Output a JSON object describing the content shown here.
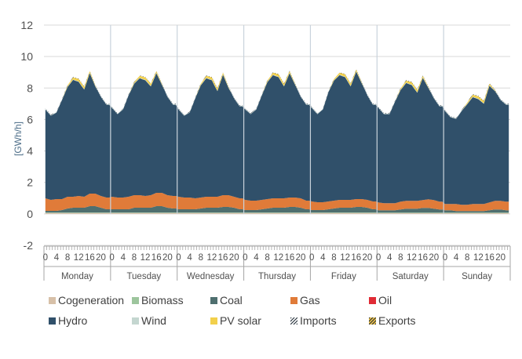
{
  "chart_data": {
    "type": "area",
    "stacked": true,
    "ylabel": "[GWh/h]",
    "ylim": [
      -2,
      12
    ],
    "yticks": [
      -2,
      0,
      2,
      4,
      6,
      8,
      10,
      12
    ],
    "grid": "horizontal",
    "days": [
      "Monday",
      "Tuesday",
      "Wednesday",
      "Thursday",
      "Friday",
      "Saturday",
      "Sunday"
    ],
    "hour_ticks": [
      "0",
      "4",
      "8",
      "12",
      "16",
      "20"
    ],
    "hourly_sample_hours": [
      0,
      2,
      4,
      6,
      8,
      10,
      12,
      14,
      16,
      18,
      20,
      22
    ],
    "total_load": [
      [
        6.7,
        6.3,
        6.5,
        7.3,
        8.2,
        8.7,
        8.6,
        8.1,
        9.1,
        8.2,
        7.5,
        7.0
      ],
      [
        6.8,
        6.4,
        6.7,
        7.6,
        8.4,
        8.8,
        8.7,
        8.3,
        9.1,
        8.3,
        7.5,
        7.0
      ],
      [
        6.7,
        6.3,
        6.5,
        7.4,
        8.3,
        8.8,
        8.7,
        8.0,
        9.0,
        8.1,
        7.4,
        6.9
      ],
      [
        6.7,
        6.4,
        6.7,
        7.6,
        8.5,
        9.0,
        8.9,
        8.3,
        9.1,
        8.3,
        7.5,
        7.0
      ],
      [
        6.8,
        6.4,
        6.7,
        7.8,
        8.6,
        9.0,
        8.9,
        8.3,
        9.2,
        8.4,
        7.6,
        7.0
      ],
      [
        6.8,
        6.4,
        6.4,
        7.2,
        8.0,
        8.5,
        8.4,
        7.9,
        8.8,
        8.1,
        7.4,
        6.9
      ],
      [
        6.6,
        6.2,
        6.1,
        6.6,
        7.1,
        7.6,
        7.5,
        7.2,
        8.3,
        7.9,
        7.3,
        7.0
      ]
    ],
    "series": [
      {
        "name": "Cogeneration",
        "color": "#d7c0a8",
        "pattern": "solid",
        "values_by_day": [
          0.06,
          0.06,
          0.06,
          0.06,
          0.06,
          0.05,
          0.05
        ]
      },
      {
        "name": "Biomass",
        "color": "#9dc59d",
        "pattern": "solid",
        "values_by_day": [
          0.03,
          0.03,
          0.03,
          0.03,
          0.03,
          0.03,
          0.03
        ]
      },
      {
        "name": "Coal",
        "color": "#4f6f6f",
        "pattern": "solid",
        "values": [
          [
            0.1,
            0.1,
            0.1,
            0.15,
            0.25,
            0.3,
            0.3,
            0.3,
            0.4,
            0.4,
            0.3,
            0.2
          ],
          [
            0.2,
            0.2,
            0.2,
            0.2,
            0.3,
            0.3,
            0.3,
            0.3,
            0.4,
            0.4,
            0.3,
            0.25
          ],
          [
            0.2,
            0.2,
            0.2,
            0.2,
            0.25,
            0.3,
            0.3,
            0.3,
            0.35,
            0.35,
            0.3,
            0.2
          ],
          [
            0.15,
            0.15,
            0.15,
            0.2,
            0.25,
            0.3,
            0.3,
            0.3,
            0.35,
            0.35,
            0.3,
            0.2
          ],
          [
            0.15,
            0.15,
            0.15,
            0.2,
            0.25,
            0.3,
            0.3,
            0.3,
            0.35,
            0.35,
            0.3,
            0.2
          ],
          [
            0.15,
            0.15,
            0.15,
            0.15,
            0.2,
            0.25,
            0.25,
            0.25,
            0.3,
            0.3,
            0.25,
            0.2
          ],
          [
            0.15,
            0.15,
            0.1,
            0.1,
            0.1,
            0.1,
            0.1,
            0.1,
            0.15,
            0.2,
            0.2,
            0.15
          ]
        ]
      },
      {
        "name": "Gas",
        "color": "#e07b39",
        "pattern": "solid",
        "values": [
          [
            0.8,
            0.7,
            0.75,
            0.7,
            0.75,
            0.7,
            0.75,
            0.7,
            0.8,
            0.8,
            0.75,
            0.75
          ],
          [
            0.8,
            0.75,
            0.75,
            0.8,
            0.8,
            0.8,
            0.75,
            0.8,
            0.85,
            0.85,
            0.8,
            0.8
          ],
          [
            0.8,
            0.75,
            0.75,
            0.7,
            0.7,
            0.7,
            0.7,
            0.7,
            0.75,
            0.75,
            0.7,
            0.7
          ],
          [
            0.65,
            0.6,
            0.6,
            0.6,
            0.6,
            0.6,
            0.6,
            0.6,
            0.6,
            0.6,
            0.6,
            0.55
          ],
          [
            0.55,
            0.5,
            0.5,
            0.5,
            0.5,
            0.5,
            0.5,
            0.5,
            0.5,
            0.5,
            0.5,
            0.5
          ],
          [
            0.5,
            0.45,
            0.45,
            0.45,
            0.5,
            0.5,
            0.5,
            0.5,
            0.5,
            0.55,
            0.55,
            0.5
          ],
          [
            0.4,
            0.4,
            0.45,
            0.4,
            0.4,
            0.45,
            0.45,
            0.45,
            0.5,
            0.55,
            0.55,
            0.55
          ]
        ]
      },
      {
        "name": "Oil",
        "color": "#e02b35",
        "pattern": "solid",
        "values_by_day": [
          0,
          0,
          0,
          0,
          0,
          0,
          0
        ]
      },
      {
        "name": "Hydro",
        "color": "#30506a",
        "pattern": "solid",
        "note": "remainder of total load"
      },
      {
        "name": "Wind",
        "color": "#c4d6d0",
        "pattern": "solid",
        "values_by_day": [
          0.03,
          0.03,
          0.03,
          0.03,
          0.03,
          0.03,
          0.03
        ]
      },
      {
        "name": "PV solar",
        "color": "#f2d04b",
        "pattern": "solid",
        "midday_peak_by_day": [
          0.15,
          0.15,
          0.15,
          0.15,
          0.15,
          0.15,
          0.15
        ]
      },
      {
        "name": "Imports",
        "color": "#1f2b35",
        "pattern": "hatch",
        "values_by_day": [
          0.03,
          0.03,
          0.03,
          0.03,
          0.03,
          0.03,
          0.03
        ]
      },
      {
        "name": "Exports",
        "color": "#d6a12a",
        "pattern": "hatch",
        "values_by_day": [
          0,
          0,
          0,
          0,
          0,
          0,
          0
        ]
      }
    ]
  },
  "legend": {
    "placement": "bottom",
    "rows": [
      [
        {
          "label": "Cogeneration",
          "color": "#d7c0a8",
          "pattern": "solid"
        },
        {
          "label": "Biomass",
          "color": "#9dc59d",
          "pattern": "solid"
        },
        {
          "label": "Coal",
          "color": "#4f6f6f",
          "pattern": "solid"
        },
        {
          "label": "Gas",
          "color": "#e07b39",
          "pattern": "solid"
        },
        {
          "label": "Oil",
          "color": "#e02b35",
          "pattern": "solid"
        }
      ],
      [
        {
          "label": "Hydro",
          "color": "#30506a",
          "pattern": "solid"
        },
        {
          "label": "Wind",
          "color": "#c4d6d0",
          "pattern": "solid"
        },
        {
          "label": "PV solar",
          "color": "#f2d04b",
          "pattern": "solid"
        },
        {
          "label": "Imports",
          "color": "#1f2b35",
          "pattern": "hatch"
        },
        {
          "label": "Exports",
          "color": "#d6a12a",
          "pattern": "hatch"
        }
      ]
    ]
  },
  "colors": {
    "text": "#404040",
    "axis_text": "#505050",
    "ylabel_text": "#4a6b86",
    "grid": "#d9d9d9",
    "axis": "#a6a6a6"
  }
}
